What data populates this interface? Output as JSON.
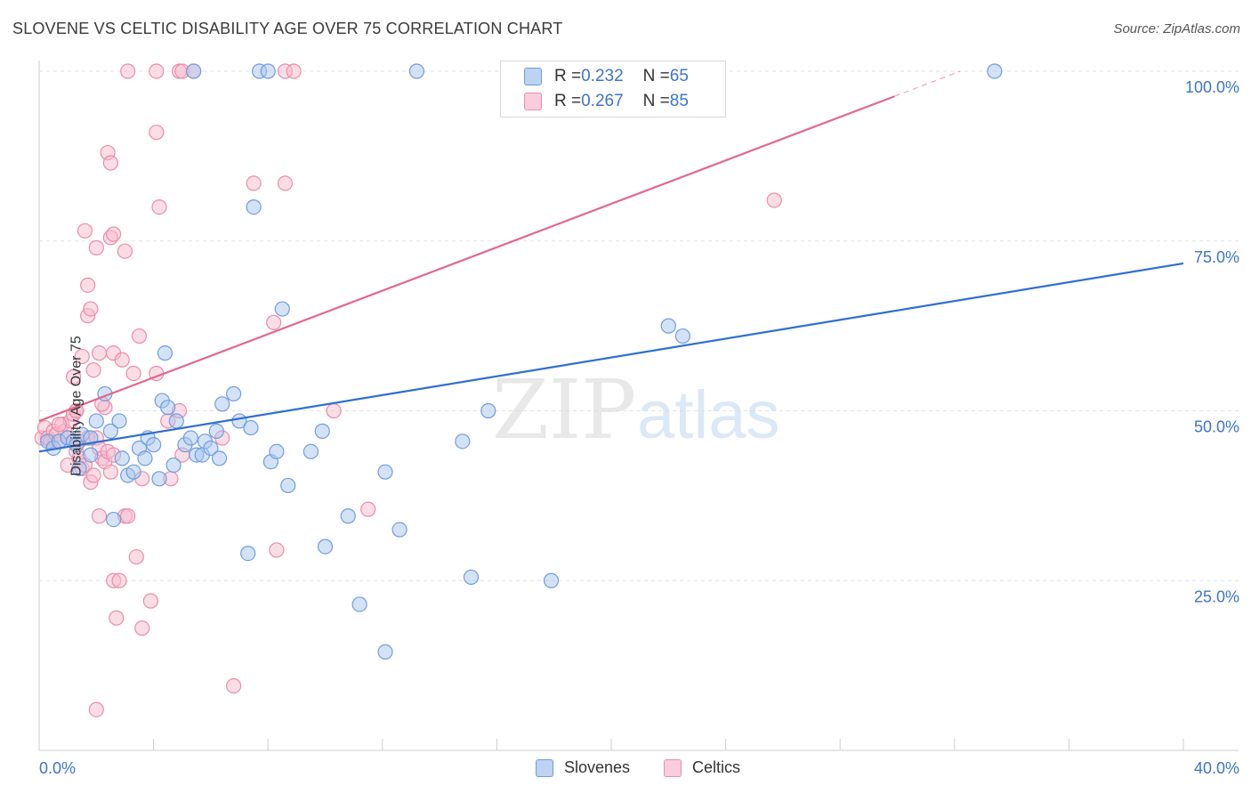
{
  "header": {
    "title": "SLOVENE VS CELTIC DISABILITY AGE OVER 75 CORRELATION CHART",
    "source": "Source: ZipAtlas.com"
  },
  "legend_top": [
    {
      "r_label": "R = ",
      "r_value": "0.232",
      "n_label": "N = ",
      "n_value": "65"
    },
    {
      "r_label": "R = ",
      "r_value": "0.267",
      "n_label": "N = ",
      "n_value": "85"
    }
  ],
  "watermark": {
    "zip": "ZIP",
    "atlas": "atlas"
  },
  "colors": {
    "slovenes_fill": "#a9c6ee",
    "slovenes_stroke": "#6f9ddd",
    "slovenes_line": "#2f6fcf",
    "celtics_fill": "#f7bccd",
    "celtics_stroke": "#ec8cab",
    "celtics_line": "#e0688f",
    "axis_label": "#3c74c9"
  },
  "chart_data": {
    "type": "scatter",
    "title": "SLOVENE VS CELTIC DISABILITY AGE OVER 75 CORRELATION CHART",
    "xlabel": "",
    "ylabel": "Disability Age Over 75",
    "xlim": [
      0,
      40
    ],
    "ylim": [
      0,
      100
    ],
    "x_tick_labels": [
      "0.0%",
      "40.0%"
    ],
    "y_ticks": [
      25,
      50,
      75,
      100
    ],
    "y_tick_labels": [
      "25.0%",
      "50.0%",
      "75.0%",
      "100.0%"
    ],
    "grid": true,
    "legend": [
      "Slovenes",
      "Celtics"
    ],
    "series": [
      {
        "name": "Slovenes",
        "r": 0.232,
        "n": 65,
        "trend": {
          "x": [
            0,
            40
          ],
          "y": [
            44.0,
            71.7
          ]
        },
        "points": [
          [
            0.3,
            45.5
          ],
          [
            0.5,
            44.5
          ],
          [
            0.7,
            45.5
          ],
          [
            1.0,
            46.0
          ],
          [
            1.2,
            45.5
          ],
          [
            1.3,
            45.0
          ],
          [
            1.5,
            46.5
          ],
          [
            1.8,
            46.0
          ],
          [
            1.4,
            41.5
          ],
          [
            1.8,
            43.5
          ],
          [
            2.0,
            48.5
          ],
          [
            2.3,
            52.5
          ],
          [
            2.5,
            47.0
          ],
          [
            2.8,
            48.5
          ],
          [
            2.6,
            34.0
          ],
          [
            2.9,
            43.0
          ],
          [
            3.1,
            40.5
          ],
          [
            3.3,
            41.0
          ],
          [
            3.5,
            44.5
          ],
          [
            3.7,
            43.0
          ],
          [
            3.8,
            46.0
          ],
          [
            4.0,
            45.0
          ],
          [
            4.2,
            40.0
          ],
          [
            4.3,
            51.5
          ],
          [
            4.4,
            58.5
          ],
          [
            4.5,
            50.5
          ],
          [
            4.7,
            42.0
          ],
          [
            4.8,
            48.5
          ],
          [
            5.1,
            45.0
          ],
          [
            5.3,
            46.0
          ],
          [
            5.5,
            43.5
          ],
          [
            5.7,
            43.5
          ],
          [
            5.8,
            45.5
          ],
          [
            6.0,
            44.5
          ],
          [
            6.2,
            47.0
          ],
          [
            6.3,
            43.0
          ],
          [
            6.4,
            51.0
          ],
          [
            6.8,
            52.5
          ],
          [
            7.0,
            48.5
          ],
          [
            7.4,
            47.5
          ],
          [
            7.3,
            29.0
          ],
          [
            7.5,
            80.0
          ],
          [
            8.1,
            42.5
          ],
          [
            8.3,
            44.0
          ],
          [
            8.5,
            65.0
          ],
          [
            8.7,
            39.0
          ],
          [
            9.5,
            44.0
          ],
          [
            9.9,
            47.0
          ],
          [
            10.0,
            30.0
          ],
          [
            10.8,
            34.5
          ],
          [
            11.2,
            21.5
          ],
          [
            12.1,
            41.0
          ],
          [
            12.1,
            14.5
          ],
          [
            12.6,
            32.5
          ],
          [
            14.8,
            45.5
          ],
          [
            15.1,
            25.5
          ],
          [
            15.7,
            50.0
          ],
          [
            17.9,
            25.0
          ],
          [
            22.0,
            62.5
          ],
          [
            22.5,
            61.0
          ],
          [
            5.4,
            100
          ],
          [
            7.7,
            100
          ],
          [
            8.0,
            100
          ],
          [
            13.2,
            100
          ],
          [
            33.4,
            100
          ]
        ]
      },
      {
        "name": "Celtics",
        "r": 0.267,
        "n": 85,
        "trend": {
          "x": [
            0,
            29.9
          ],
          "y": [
            48.5,
            96.3
          ]
        },
        "trend_dashed": {
          "x": [
            29.9,
            32.2
          ],
          "y": [
            96.3,
            100.0
          ]
        },
        "points": [
          [
            0.1,
            46.0
          ],
          [
            0.2,
            47.5
          ],
          [
            0.3,
            46.0
          ],
          [
            0.4,
            45.5
          ],
          [
            0.5,
            47.0
          ],
          [
            0.6,
            46.5
          ],
          [
            0.7,
            45.5
          ],
          [
            0.8,
            48.0
          ],
          [
            0.9,
            47.0
          ],
          [
            1.0,
            46.0
          ],
          [
            1.1,
            48.5
          ],
          [
            1.2,
            49.5
          ],
          [
            1.3,
            44.0
          ],
          [
            1.4,
            45.5
          ],
          [
            1.0,
            42.0
          ],
          [
            1.2,
            55.0
          ],
          [
            1.4,
            43.0
          ],
          [
            1.5,
            41.5
          ],
          [
            1.6,
            42.0
          ],
          [
            1.7,
            46.0
          ],
          [
            1.8,
            39.5
          ],
          [
            1.9,
            40.5
          ],
          [
            2.0,
            46.0
          ],
          [
            2.1,
            44.5
          ],
          [
            2.2,
            43.0
          ],
          [
            2.3,
            42.5
          ],
          [
            2.4,
            44.0
          ],
          [
            2.5,
            41.0
          ],
          [
            2.6,
            43.5
          ],
          [
            1.3,
            50.0
          ],
          [
            1.5,
            58.0
          ],
          [
            1.6,
            76.5
          ],
          [
            1.7,
            68.5
          ],
          [
            1.7,
            64.0
          ],
          [
            1.8,
            65.0
          ],
          [
            1.9,
            56.0
          ],
          [
            2.0,
            74.0
          ],
          [
            2.1,
            58.5
          ],
          [
            2.3,
            50.5
          ],
          [
            2.5,
            75.5
          ],
          [
            2.6,
            76.0
          ],
          [
            2.6,
            58.5
          ],
          [
            2.9,
            57.5
          ],
          [
            2.4,
            88.0
          ],
          [
            2.5,
            86.5
          ],
          [
            3.0,
            73.5
          ],
          [
            3.3,
            55.5
          ],
          [
            3.5,
            61.0
          ],
          [
            4.1,
            91.0
          ],
          [
            4.2,
            80.0
          ],
          [
            4.1,
            55.5
          ],
          [
            4.9,
            50.0
          ],
          [
            5.0,
            43.5
          ],
          [
            4.6,
            40.0
          ],
          [
            3.0,
            34.5
          ],
          [
            3.1,
            34.5
          ],
          [
            2.1,
            34.5
          ],
          [
            2.6,
            25.0
          ],
          [
            2.8,
            25.0
          ],
          [
            3.4,
            28.5
          ],
          [
            2.7,
            19.5
          ],
          [
            3.6,
            18.0
          ],
          [
            3.9,
            22.0
          ],
          [
            2.0,
            6.0
          ],
          [
            6.4,
            46.0
          ],
          [
            6.8,
            9.5
          ],
          [
            7.5,
            83.5
          ],
          [
            8.2,
            63.0
          ],
          [
            8.6,
            83.5
          ],
          [
            8.3,
            29.5
          ],
          [
            10.3,
            50.0
          ],
          [
            11.5,
            35.5
          ],
          [
            25.7,
            81.0
          ],
          [
            3.1,
            100
          ],
          [
            4.1,
            100
          ],
          [
            4.9,
            100
          ],
          [
            5.0,
            100
          ],
          [
            5.4,
            100
          ],
          [
            8.6,
            100
          ],
          [
            8.9,
            100
          ],
          [
            1.3,
            50.0
          ],
          [
            0.7,
            48.0
          ],
          [
            2.2,
            51.0
          ],
          [
            3.6,
            40.0
          ],
          [
            4.5,
            48.5
          ]
        ]
      }
    ]
  },
  "bottom_legend": {
    "slovenes": "Slovenes",
    "celtics": "Celtics"
  }
}
